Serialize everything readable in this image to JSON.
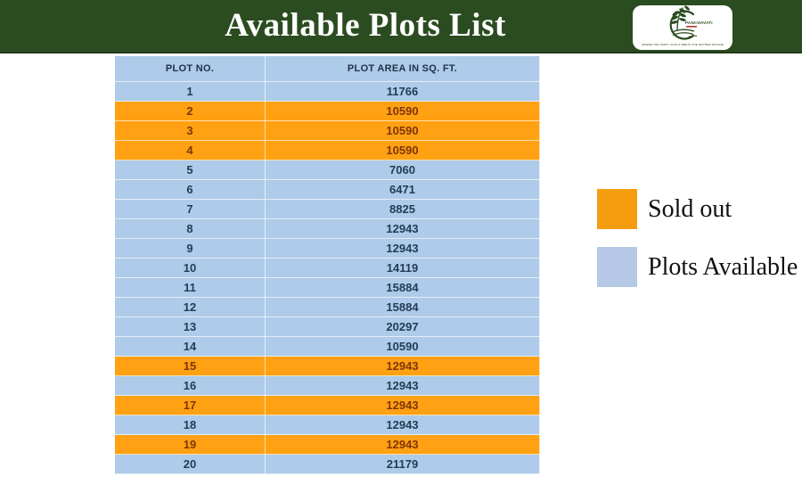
{
  "header": {
    "title": "Available Plots List",
    "logo": {
      "brand": "PANCHAVATI",
      "tagline": "WHERE THE HAPPY SOULS MEETS THE MOTHER NATURE"
    }
  },
  "table": {
    "columns": [
      "PLOT NO.",
      "PLOT AREA IN SQ. FT."
    ],
    "rows": [
      {
        "plot_no": "1",
        "area": "11766",
        "status": "available"
      },
      {
        "plot_no": "2",
        "area": "10590",
        "status": "sold"
      },
      {
        "plot_no": "3",
        "area": "10590",
        "status": "sold"
      },
      {
        "plot_no": "4",
        "area": "10590",
        "status": "sold"
      },
      {
        "plot_no": "5",
        "area": "7060",
        "status": "available"
      },
      {
        "plot_no": "6",
        "area": "6471",
        "status": "available"
      },
      {
        "plot_no": "7",
        "area": "8825",
        "status": "available"
      },
      {
        "plot_no": "8",
        "area": "12943",
        "status": "available"
      },
      {
        "plot_no": "9",
        "area": "12943",
        "status": "available"
      },
      {
        "plot_no": "10",
        "area": "14119",
        "status": "available"
      },
      {
        "plot_no": "11",
        "area": "15884",
        "status": "available"
      },
      {
        "plot_no": "12",
        "area": "15884",
        "status": "available"
      },
      {
        "plot_no": "13",
        "area": "20297",
        "status": "available"
      },
      {
        "plot_no": "14",
        "area": "10590",
        "status": "available"
      },
      {
        "plot_no": "15",
        "area": "12943",
        "status": "sold"
      },
      {
        "plot_no": "16",
        "area": "12943",
        "status": "available"
      },
      {
        "plot_no": "17",
        "area": "12943",
        "status": "sold"
      },
      {
        "plot_no": "18",
        "area": "12943",
        "status": "available"
      },
      {
        "plot_no": "19",
        "area": "12943",
        "status": "sold"
      },
      {
        "plot_no": "20",
        "area": "21179",
        "status": "available"
      }
    ]
  },
  "legend": {
    "sold_out_label": "Sold out",
    "available_label": "Plots Available"
  },
  "colors": {
    "header_green": "#2B4C20",
    "available_blue": "#AECBE9",
    "sold_orange": "#FFA113",
    "legend_orange": "#F59D0F",
    "legend_blue": "#B5C9E6"
  }
}
